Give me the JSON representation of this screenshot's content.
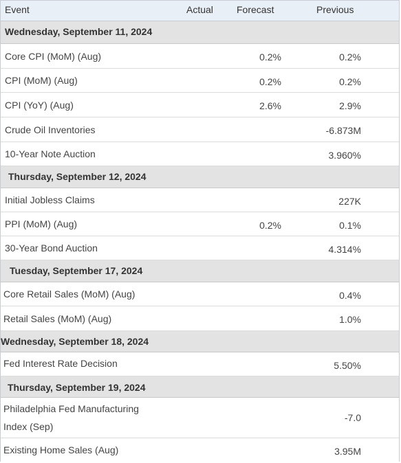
{
  "header": {
    "event": "Event",
    "actual": "Actual",
    "forecast": "Forecast",
    "previous": "Previous"
  },
  "groups": [
    {
      "date": "Wednesday, September 11, 2024",
      "rows": [
        {
          "event": "Core CPI (MoM) (Aug)",
          "forecast": "0.2%",
          "previous": "0.2%"
        },
        {
          "event": "CPI (MoM) (Aug)",
          "forecast": "0.2%",
          "previous": "0.2%"
        },
        {
          "event": "CPI (YoY) (Aug)",
          "forecast": "2.6%",
          "previous": "2.9%"
        },
        {
          "event": "Crude Oil Inventories",
          "forecast": "",
          "previous": "-6.873M"
        },
        {
          "event": "10-Year Note Auction",
          "forecast": "",
          "previous": "3.960%"
        }
      ]
    },
    {
      "date": "Thursday, September 12, 2024",
      "rows": [
        {
          "event": "Initial Jobless Claims",
          "forecast": "",
          "previous": "227K"
        },
        {
          "event": "PPI (MoM) (Aug)",
          "forecast": "0.2%",
          "previous": "0.1%"
        },
        {
          "event": "30-Year Bond Auction",
          "forecast": "",
          "previous": "4.314%"
        }
      ]
    },
    {
      "date": "Tuesday, September 17, 2024",
      "rows": [
        {
          "event": "Core Retail Sales (MoM) (Aug)",
          "forecast": "",
          "previous": "0.4%"
        },
        {
          "event": "Retail Sales (MoM) (Aug)",
          "forecast": "",
          "previous": "1.0%"
        }
      ]
    },
    {
      "date": "Wednesday, September 18, 2024",
      "rows": [
        {
          "event": "Fed Interest Rate Decision",
          "forecast": "",
          "previous": "5.50%"
        }
      ]
    },
    {
      "date": "Thursday, September 19, 2024",
      "rows": [
        {
          "event_line1": "Philadelphia Fed Manufacturing",
          "event_line2": "Index (Sep)",
          "forecast": "",
          "previous": "-7.0"
        },
        {
          "event": "Existing Home Sales (Aug)",
          "forecast": "",
          "previous": "3.95M"
        }
      ]
    }
  ]
}
